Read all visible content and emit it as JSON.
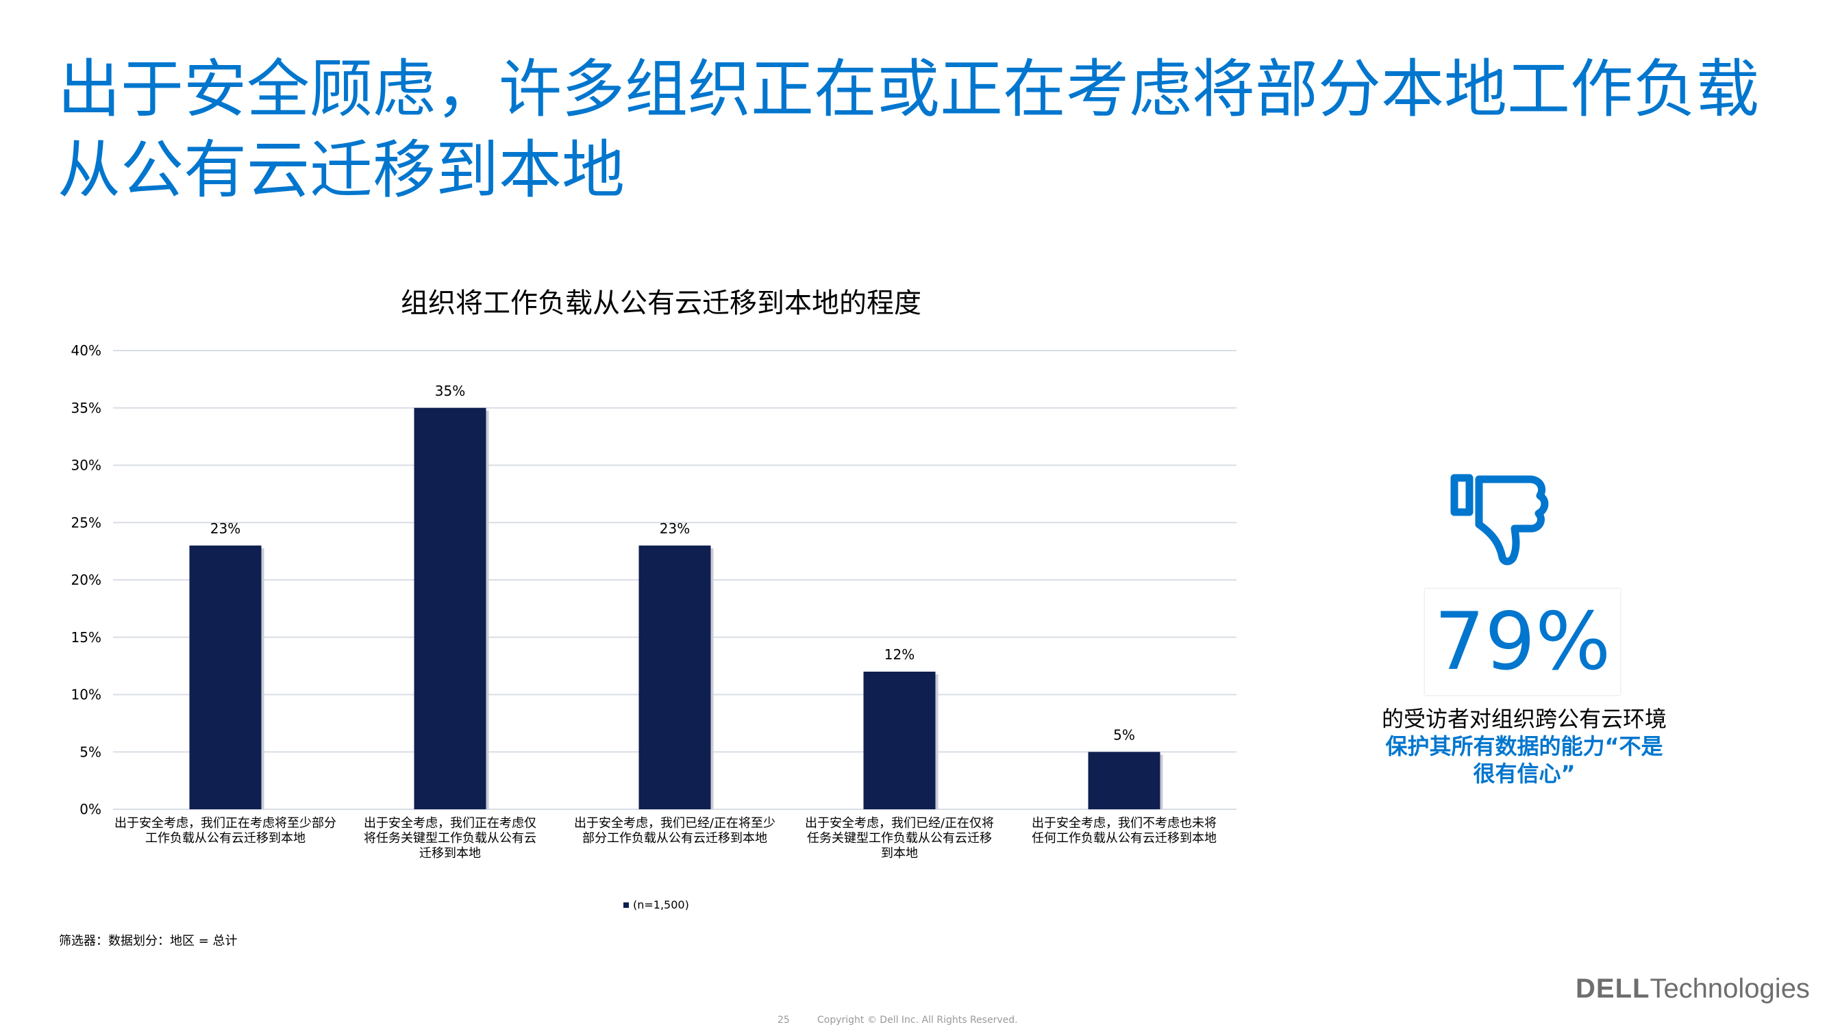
{
  "slide": {
    "title_line1": "出于安全顾虑，许多组织正在或正在考虑将部分本地工作负载",
    "title_line2": "从公有云迁移到本地"
  },
  "chart_data": {
    "type": "bar",
    "title": "组织将工作负载从公有云迁移到本地的程度",
    "categories": [
      "出于安全考虑，我们正在考虑将至少部分工作负载从公有云迁移到本地",
      "出于安全考虑，我们正在考虑仅将任务关键型工作负载从公有云迁移到本地",
      "出于安全考虑，我们已经/正在将至少部分工作负载从公有云迁移到本地",
      "出于安全考虑，我们已经/正在仅将任务关键型工作负载从公有云迁移到本地",
      "出于安全考虑，我们不考虑也未将任何工作负载从公有云迁移到本地"
    ],
    "category_lines": [
      [
        "出于安全考虑，我们正在考虑将至少部分",
        "工作负载从公有云迁移到本地"
      ],
      [
        "出于安全考虑，我们正在考虑仅",
        "将任务关键型工作负载从公有云",
        "迁移到本地"
      ],
      [
        "出于安全考虑，我们已经/正在将至少",
        "部分工作负载从公有云迁移到本地"
      ],
      [
        "出于安全考虑，我们已经/正在仅将",
        "任务关键型工作负载从公有云迁移",
        "到本地"
      ],
      [
        "出于安全考虑，我们不考虑也未将",
        "任何工作负载从公有云迁移到本地"
      ]
    ],
    "series": [
      {
        "name": "(n=1,500)",
        "values": [
          23,
          35,
          23,
          12,
          5
        ],
        "color": "#0f1f4f"
      }
    ],
    "data_labels": [
      "23%",
      "35%",
      "23%",
      "12%",
      "5%"
    ],
    "yticks": [
      "0%",
      "5%",
      "10%",
      "15%",
      "20%",
      "25%",
      "30%",
      "35%",
      "40%"
    ],
    "ylim": [
      0,
      40
    ],
    "grid": true,
    "legend_position": "bottom"
  },
  "filter_note": "筛选器：数据划分：地区 = 总计",
  "stat": {
    "icon": "thumbs-down-icon",
    "value": "79%",
    "line1": "的受访者对组织跨公有云环境",
    "line2": "保护其所有数据的能力“不是",
    "line3": "很有信心”"
  },
  "footer": {
    "page": "25",
    "copyright": "Copyright © Dell Inc. All Rights Reserved.",
    "brand_dell": "DELL",
    "brand_tech": "Technologies"
  },
  "colors": {
    "accent": "#0076ce",
    "bar": "#0f1f4f",
    "grid": "#d9dde6"
  }
}
